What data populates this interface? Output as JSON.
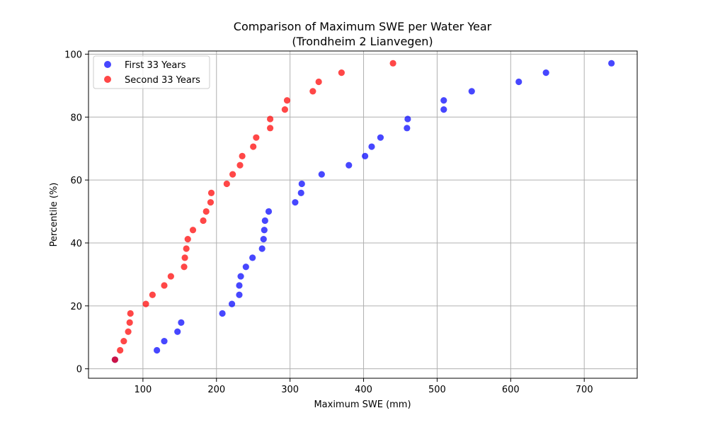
{
  "chart_data": {
    "type": "scatter",
    "title": "Comparison of Maximum SWE per Water Year",
    "subtitle": "(Trondheim 2 Lianvegen)",
    "xlabel": "Maximum SWE (mm)",
    "ylabel": "Percentile (%)",
    "xlim": [
      26,
      772
    ],
    "ylim": [
      -3,
      101
    ],
    "xticks": [
      100,
      200,
      300,
      400,
      500,
      600,
      700
    ],
    "yticks": [
      0,
      20,
      40,
      60,
      80,
      100
    ],
    "grid": true,
    "legend": "top-left",
    "series": [
      {
        "name": "First 33 Years",
        "color": "#0000ff",
        "points": [
          [
            62,
            2.9
          ],
          [
            119,
            5.9
          ],
          [
            129,
            8.8
          ],
          [
            147,
            11.8
          ],
          [
            152,
            14.7
          ],
          [
            208,
            17.6
          ],
          [
            221,
            20.6
          ],
          [
            231,
            23.5
          ],
          [
            231,
            26.5
          ],
          [
            233,
            29.4
          ],
          [
            240,
            32.4
          ],
          [
            249,
            35.3
          ],
          [
            262,
            38.2
          ],
          [
            264,
            41.2
          ],
          [
            265,
            44.1
          ],
          [
            266,
            47.1
          ],
          [
            271,
            50.0
          ],
          [
            307,
            52.9
          ],
          [
            315,
            55.9
          ],
          [
            316,
            58.8
          ],
          [
            343,
            61.8
          ],
          [
            380,
            64.7
          ],
          [
            402,
            67.6
          ],
          [
            411,
            70.6
          ],
          [
            423,
            73.5
          ],
          [
            459,
            76.5
          ],
          [
            460,
            79.4
          ],
          [
            509,
            82.4
          ],
          [
            509,
            85.3
          ],
          [
            547,
            88.2
          ],
          [
            611,
            91.2
          ],
          [
            648,
            94.1
          ],
          [
            737,
            97.1
          ]
        ]
      },
      {
        "name": "Second 33 Years",
        "color": "#ff0000",
        "points": [
          [
            62,
            2.9
          ],
          [
            69,
            5.9
          ],
          [
            74,
            8.8
          ],
          [
            80,
            11.8
          ],
          [
            82,
            14.7
          ],
          [
            83,
            17.6
          ],
          [
            104,
            20.6
          ],
          [
            113,
            23.5
          ],
          [
            129,
            26.5
          ],
          [
            138,
            29.4
          ],
          [
            156,
            32.4
          ],
          [
            157,
            35.3
          ],
          [
            159,
            38.2
          ],
          [
            161,
            41.2
          ],
          [
            168,
            44.1
          ],
          [
            182,
            47.1
          ],
          [
            186,
            50.0
          ],
          [
            192,
            52.9
          ],
          [
            193,
            55.9
          ],
          [
            214,
            58.8
          ],
          [
            222,
            61.8
          ],
          [
            232,
            64.7
          ],
          [
            235,
            67.6
          ],
          [
            250,
            70.6
          ],
          [
            254,
            73.5
          ],
          [
            273,
            76.5
          ],
          [
            273,
            79.4
          ],
          [
            293,
            82.4
          ],
          [
            296,
            85.3
          ],
          [
            331,
            88.2
          ],
          [
            339,
            91.2
          ],
          [
            370,
            94.1
          ],
          [
            440,
            97.1
          ]
        ]
      }
    ]
  }
}
